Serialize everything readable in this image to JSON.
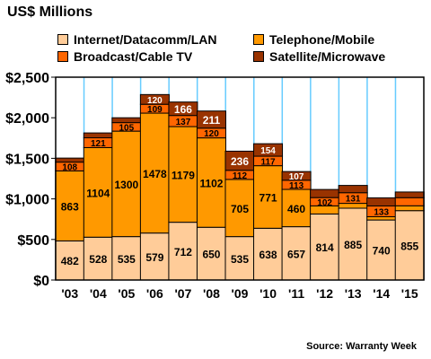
{
  "header": {
    "unit_title": "US$ Millions"
  },
  "colors": {
    "internet": "#ffcc99",
    "telephone": "#ff9900",
    "broadcast": "#ff6600",
    "satellite": "#993300",
    "grid": "#66ccff",
    "plot_bg": "#ffffff"
  },
  "footer": {
    "source": "Source: Warranty Week"
  },
  "chart_data": {
    "type": "bar",
    "stacked": true,
    "categories": [
      "'03",
      "'04",
      "'05",
      "'06",
      "'07",
      "'08",
      "'09",
      "'10",
      "'11",
      "'12",
      "'13",
      "'14",
      "'15"
    ],
    "series": [
      {
        "name": "Internet/Datacomm/LAN",
        "color": "#ffcc99",
        "values": [
          482,
          528,
          535,
          579,
          712,
          650,
          535,
          638,
          657,
          814,
          885,
          740,
          855
        ],
        "labels": [
          "482",
          "528",
          "535",
          "579",
          "712",
          "650",
          "535",
          "638",
          "657",
          "814",
          "885",
          "740",
          "855"
        ]
      },
      {
        "name": "Telephone/Mobile",
        "color": "#ff9900",
        "values": [
          863,
          1104,
          1300,
          1478,
          1179,
          1102,
          705,
          771,
          460,
          100,
          60,
          40,
          60
        ],
        "labels": [
          "863",
          "1104",
          "1300",
          "1478",
          "1179",
          "1102",
          "705",
          "771",
          "460",
          "",
          "",
          "",
          ""
        ]
      },
      {
        "name": "Broadcast/Cable TV",
        "color": "#ff6600",
        "values": [
          108,
          121,
          105,
          109,
          137,
          120,
          112,
          117,
          113,
          102,
          131,
          133,
          100
        ],
        "labels": [
          "108",
          "121",
          "105",
          "109",
          "137",
          "120",
          "112",
          "117",
          "113",
          "102",
          "131",
          "133",
          ""
        ]
      },
      {
        "name": "Satellite/Microwave",
        "color": "#993300",
        "values": [
          50,
          60,
          60,
          120,
          166,
          211,
          236,
          154,
          107,
          100,
          90,
          100,
          70
        ],
        "labels": [
          "",
          "",
          "",
          "120",
          "166",
          "211",
          "236",
          "154",
          "107",
          "",
          "",
          "",
          ""
        ]
      }
    ],
    "ylim": [
      0,
      2500
    ],
    "yticks": [
      0,
      500,
      1000,
      1500,
      2000,
      2500
    ],
    "ytick_labels": [
      "$0",
      "$500",
      "$1,000",
      "$1,500",
      "$2,000",
      "$2,500"
    ],
    "title": "",
    "xlabel": "",
    "ylabel": "",
    "grid": "vertical",
    "legend_position": "top"
  }
}
